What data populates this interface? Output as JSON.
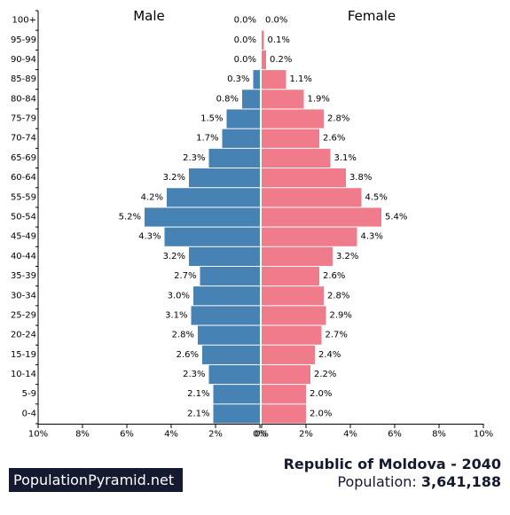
{
  "chart_data": {
    "type": "bar",
    "orientation": "horizontal-mirrored",
    "categories": [
      "100+",
      "95-99",
      "90-94",
      "85-89",
      "80-84",
      "75-79",
      "70-74",
      "65-69",
      "60-64",
      "55-59",
      "50-54",
      "45-49",
      "40-44",
      "35-39",
      "30-34",
      "25-29",
      "20-24",
      "15-19",
      "10-14",
      "5-9",
      "0-4"
    ],
    "series": [
      {
        "name": "Male",
        "color": "#4682b4",
        "values": [
          0.0,
          0.0,
          0.0,
          0.3,
          0.8,
          1.5,
          1.7,
          2.3,
          3.2,
          4.2,
          5.2,
          4.3,
          3.2,
          2.7,
          3.0,
          3.1,
          2.8,
          2.6,
          2.3,
          2.1,
          2.1
        ],
        "labels": [
          "0.0%",
          "0.0%",
          "0.0%",
          "0.3%",
          "0.8%",
          "1.5%",
          "1.7%",
          "2.3%",
          "3.2%",
          "4.2%",
          "5.2%",
          "4.3%",
          "3.2%",
          "2.7%",
          "3.0%",
          "3.1%",
          "2.8%",
          "2.6%",
          "2.3%",
          "2.1%",
          "2.1%"
        ]
      },
      {
        "name": "Female",
        "color": "#f07b8a",
        "values": [
          0.0,
          0.1,
          0.2,
          1.1,
          1.9,
          2.8,
          2.6,
          3.1,
          3.8,
          4.5,
          5.4,
          4.3,
          3.2,
          2.6,
          2.8,
          2.9,
          2.7,
          2.4,
          2.2,
          2.0,
          2.0
        ],
        "labels": [
          "0.0%",
          "0.1%",
          "0.2%",
          "1.1%",
          "1.9%",
          "2.8%",
          "2.6%",
          "3.1%",
          "3.8%",
          "4.5%",
          "5.4%",
          "4.3%",
          "3.2%",
          "2.6%",
          "2.8%",
          "2.9%",
          "2.7%",
          "2.4%",
          "2.2%",
          "2.0%",
          "2.0%"
        ]
      }
    ],
    "xlim": [
      -10,
      10
    ],
    "x_ticks": [
      "10%",
      "8%",
      "6%",
      "4%",
      "2%",
      "0%",
      "0%",
      "2%",
      "4%",
      "6%",
      "8%",
      "10%"
    ],
    "grid": false
  },
  "brand": "PopulationPyramid.net",
  "title": "Republic of Moldova - 2040",
  "population_label": "Population:",
  "population_value": "3,641,188"
}
